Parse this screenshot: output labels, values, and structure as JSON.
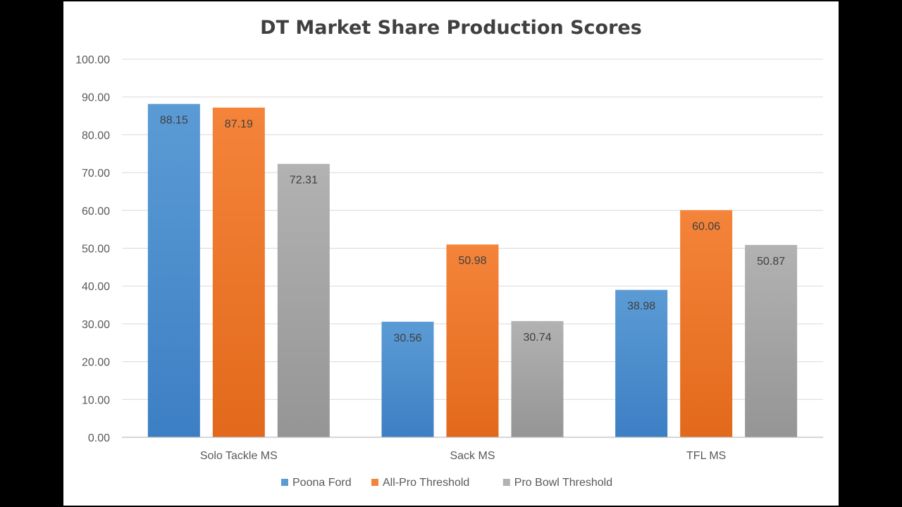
{
  "chart_data": {
    "type": "bar",
    "title": "DT Market Share Production Scores",
    "categories": [
      "Solo Tackle MS",
      "Sack MS",
      "TFL MS"
    ],
    "series": [
      {
        "name": "Poona Ford",
        "values": [
          88.15,
          30.56,
          38.98
        ],
        "color": "#5b9bd5",
        "color_dark": "#3d7fc4"
      },
      {
        "name": "All-Pro Threshold",
        "values": [
          87.19,
          50.98,
          60.06
        ],
        "color": "#f4843a",
        "color_dark": "#e2691c"
      },
      {
        "name": "Pro Bowl Threshold",
        "values": [
          72.31,
          30.74,
          50.87
        ],
        "color": "#b2b2b2",
        "color_dark": "#959595"
      }
    ],
    "value_labels": [
      [
        "88.15",
        "30.56",
        "38.98"
      ],
      [
        "87.19",
        "50.98",
        "60.06"
      ],
      [
        "72.31",
        "30.74",
        "50.87"
      ]
    ],
    "ylim": [
      0,
      100
    ],
    "yticks": [
      "0.00",
      "10.00",
      "20.00",
      "30.00",
      "40.00",
      "50.00",
      "60.00",
      "70.00",
      "80.00",
      "90.00",
      "100.00"
    ],
    "grid": true,
    "legend_position": "bottom"
  }
}
